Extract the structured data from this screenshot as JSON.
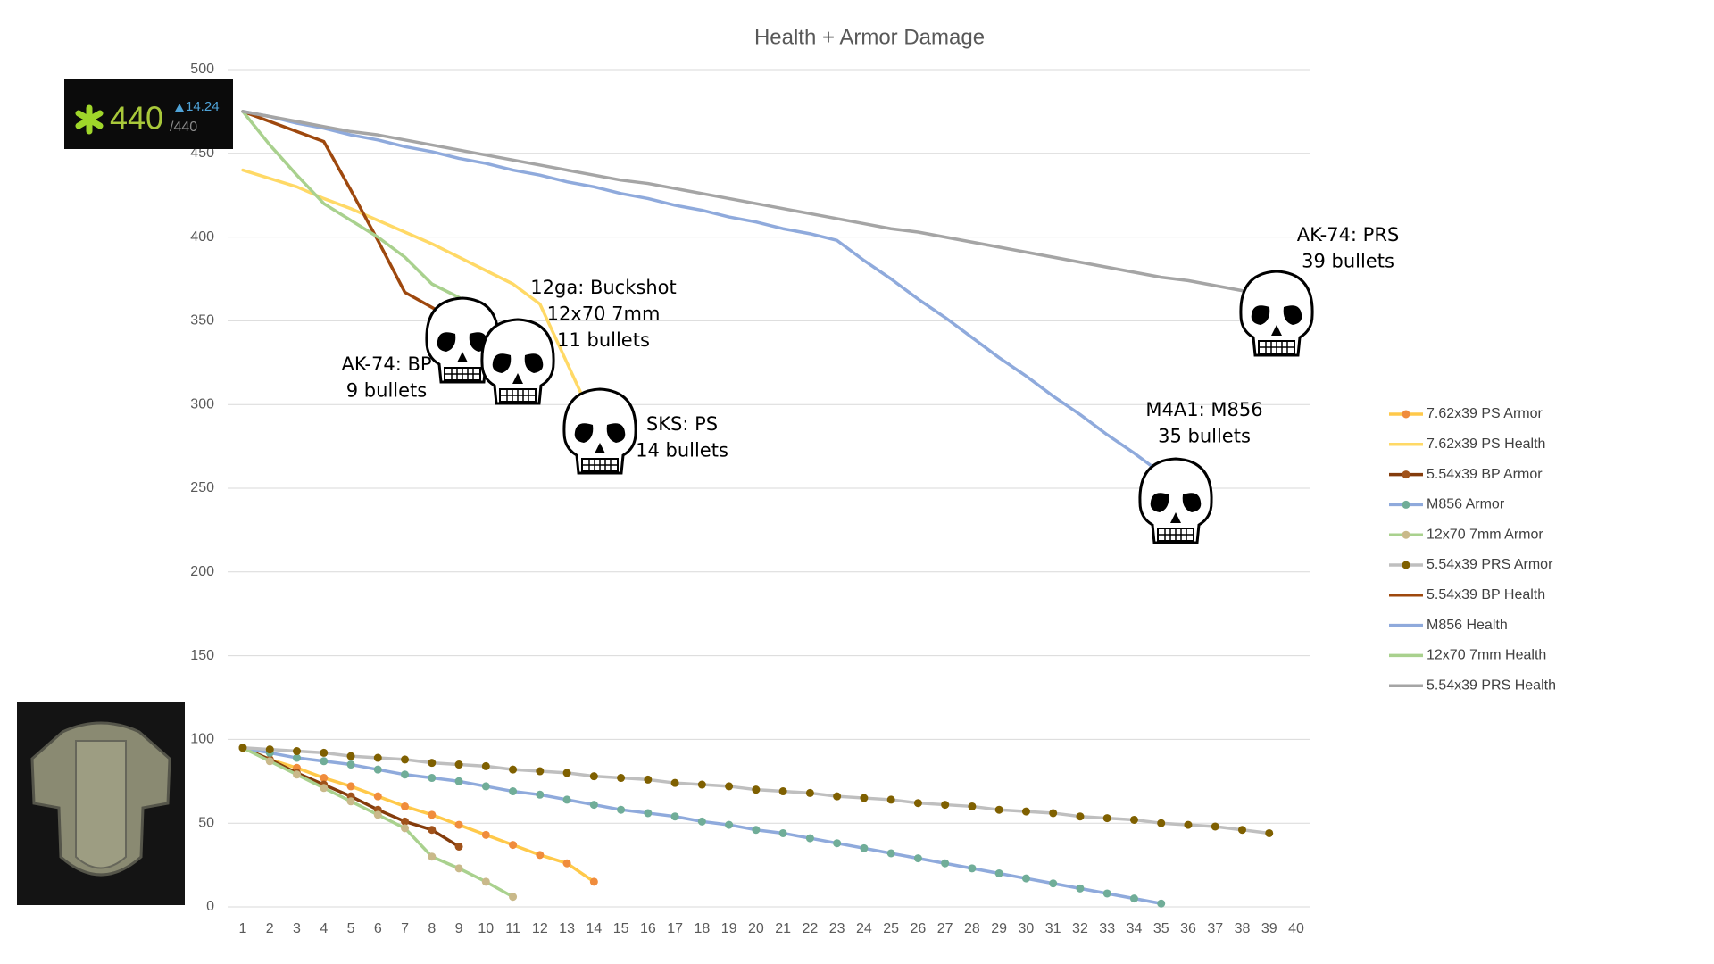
{
  "chart_data": {
    "type": "line",
    "title": "Health + Armor Damage",
    "categories": [
      1,
      2,
      3,
      4,
      5,
      6,
      7,
      8,
      9,
      10,
      11,
      12,
      13,
      14,
      15,
      16,
      17,
      18,
      19,
      20,
      21,
      22,
      23,
      24,
      25,
      26,
      27,
      28,
      29,
      30,
      31,
      32,
      33,
      34,
      35,
      36,
      37,
      38,
      39,
      40
    ],
    "ylim": [
      0,
      500
    ],
    "yticks": [
      0,
      50,
      100,
      150,
      200,
      250,
      300,
      350,
      400,
      450,
      500
    ],
    "grid": true,
    "legend": "right",
    "series": [
      {
        "name": "7.62x39 PS Armor",
        "color": "#ffc94a",
        "marker_color": "#f08c3c",
        "markers": true,
        "values": [
          95,
          88,
          83,
          77,
          72,
          66,
          60,
          55,
          49,
          43,
          37,
          31,
          26,
          15,
          null,
          null,
          null,
          null,
          null,
          null,
          null,
          null,
          null,
          null,
          null,
          null,
          null,
          null,
          null,
          null,
          null,
          null,
          null,
          null,
          null,
          null,
          null,
          null,
          null,
          null
        ]
      },
      {
        "name": "7.62x39 PS Health",
        "color": "#ffd966",
        "markers": false,
        "values": [
          440,
          435,
          430,
          423,
          417,
          410,
          403,
          396,
          388,
          380,
          372,
          360,
          325,
          290,
          null,
          null,
          null,
          null,
          null,
          null,
          null,
          null,
          null,
          null,
          null,
          null,
          null,
          null,
          null,
          null,
          null,
          null,
          null,
          null,
          null,
          null,
          null,
          null,
          null,
          null
        ]
      },
      {
        "name": "5.54x39 BP Armor",
        "color": "#843c0c",
        "marker_color": "#a0521a",
        "markers": true,
        "values": [
          95,
          88,
          80,
          73,
          66,
          58,
          51,
          46,
          36,
          null,
          null,
          null,
          null,
          null,
          null,
          null,
          null,
          null,
          null,
          null,
          null,
          null,
          null,
          null,
          null,
          null,
          null,
          null,
          null,
          null,
          null,
          null,
          null,
          null,
          null,
          null,
          null,
          null,
          null,
          null
        ]
      },
      {
        "name": "M856 Armor",
        "color": "#8faadc",
        "marker_color": "#70ad98",
        "markers": true,
        "values": [
          95,
          92,
          89,
          87,
          85,
          82,
          79,
          77,
          75,
          72,
          69,
          67,
          64,
          61,
          58,
          56,
          54,
          51,
          49,
          46,
          44,
          41,
          38,
          35,
          32,
          29,
          26,
          23,
          20,
          17,
          14,
          11,
          8,
          5,
          2,
          null,
          null,
          null,
          null,
          null
        ]
      },
      {
        "name": "12x70 7mm Armor",
        "color": "#a9d18e",
        "marker_color": "#c9b98a",
        "markers": true,
        "values": [
          95,
          87,
          79,
          71,
          63,
          55,
          47,
          30,
          23,
          15,
          6,
          null,
          null,
          null,
          null,
          null,
          null,
          null,
          null,
          null,
          null,
          null,
          null,
          null,
          null,
          null,
          null,
          null,
          null,
          null,
          null,
          null,
          null,
          null,
          null,
          null,
          null,
          null,
          null,
          null
        ]
      },
      {
        "name": "5.54x39 PRS Armor",
        "color": "#bfbfbf",
        "marker_color": "#7f6000",
        "markers": true,
        "values": [
          95,
          94,
          93,
          92,
          90,
          89,
          88,
          86,
          85,
          84,
          82,
          81,
          80,
          78,
          77,
          76,
          74,
          73,
          72,
          70,
          69,
          68,
          66,
          65,
          64,
          62,
          61,
          60,
          58,
          57,
          56,
          54,
          53,
          52,
          50,
          49,
          48,
          46,
          44,
          null
        ]
      },
      {
        "name": "5.54x39 BP Health",
        "color": "#9e480e",
        "markers": false,
        "values": [
          475,
          469,
          463,
          457,
          428,
          398,
          367,
          358,
          349,
          null,
          null,
          null,
          null,
          null,
          null,
          null,
          null,
          null,
          null,
          null,
          null,
          null,
          null,
          null,
          null,
          null,
          null,
          null,
          null,
          null,
          null,
          null,
          null,
          null,
          null,
          null,
          null,
          null,
          null,
          null
        ]
      },
      {
        "name": "M856 Health",
        "color": "#8faadc",
        "markers": false,
        "values": [
          475,
          472,
          468,
          465,
          461,
          458,
          454,
          451,
          447,
          444,
          440,
          437,
          433,
          430,
          426,
          423,
          419,
          416,
          412,
          409,
          405,
          402,
          398,
          386,
          375,
          363,
          352,
          340,
          328,
          317,
          305,
          294,
          282,
          271,
          259,
          null,
          null,
          null,
          null,
          null
        ]
      },
      {
        "name": "12x70 7mm Health",
        "color": "#a9d18e",
        "markers": false,
        "values": [
          475,
          455,
          437,
          420,
          410,
          400,
          388,
          372,
          364,
          352,
          335,
          null,
          null,
          null,
          null,
          null,
          null,
          null,
          null,
          null,
          null,
          null,
          null,
          null,
          null,
          null,
          null,
          null,
          null,
          null,
          null,
          null,
          null,
          null,
          null,
          null,
          null,
          null,
          null,
          null
        ]
      },
      {
        "name": "5.54x39 PRS Health",
        "color": "#a5a5a5",
        "markers": false,
        "values": [
          475,
          472,
          469,
          466,
          463,
          461,
          458,
          455,
          452,
          449,
          446,
          443,
          440,
          437,
          434,
          432,
          429,
          426,
          423,
          420,
          417,
          414,
          411,
          408,
          405,
          403,
          400,
          397,
          394,
          391,
          388,
          385,
          382,
          379,
          376,
          374,
          371,
          368,
          365,
          null
        ]
      }
    ],
    "annotations": [
      {
        "lines": [
          "AK-74: PRS",
          "39 bullets"
        ]
      },
      {
        "lines": [
          "M4A1: M856",
          "35 bullets"
        ]
      },
      {
        "lines": [
          "AK-74: BP",
          "9 bullets"
        ]
      },
      {
        "lines": [
          "12ga: Buckshot",
          "12x70 7mm",
          "11 bullets"
        ]
      },
      {
        "lines": [
          "SKS: PS",
          "14 bullets"
        ]
      }
    ]
  },
  "overlay": {
    "health": "440",
    "rate": "14.24",
    "max": "/440"
  }
}
